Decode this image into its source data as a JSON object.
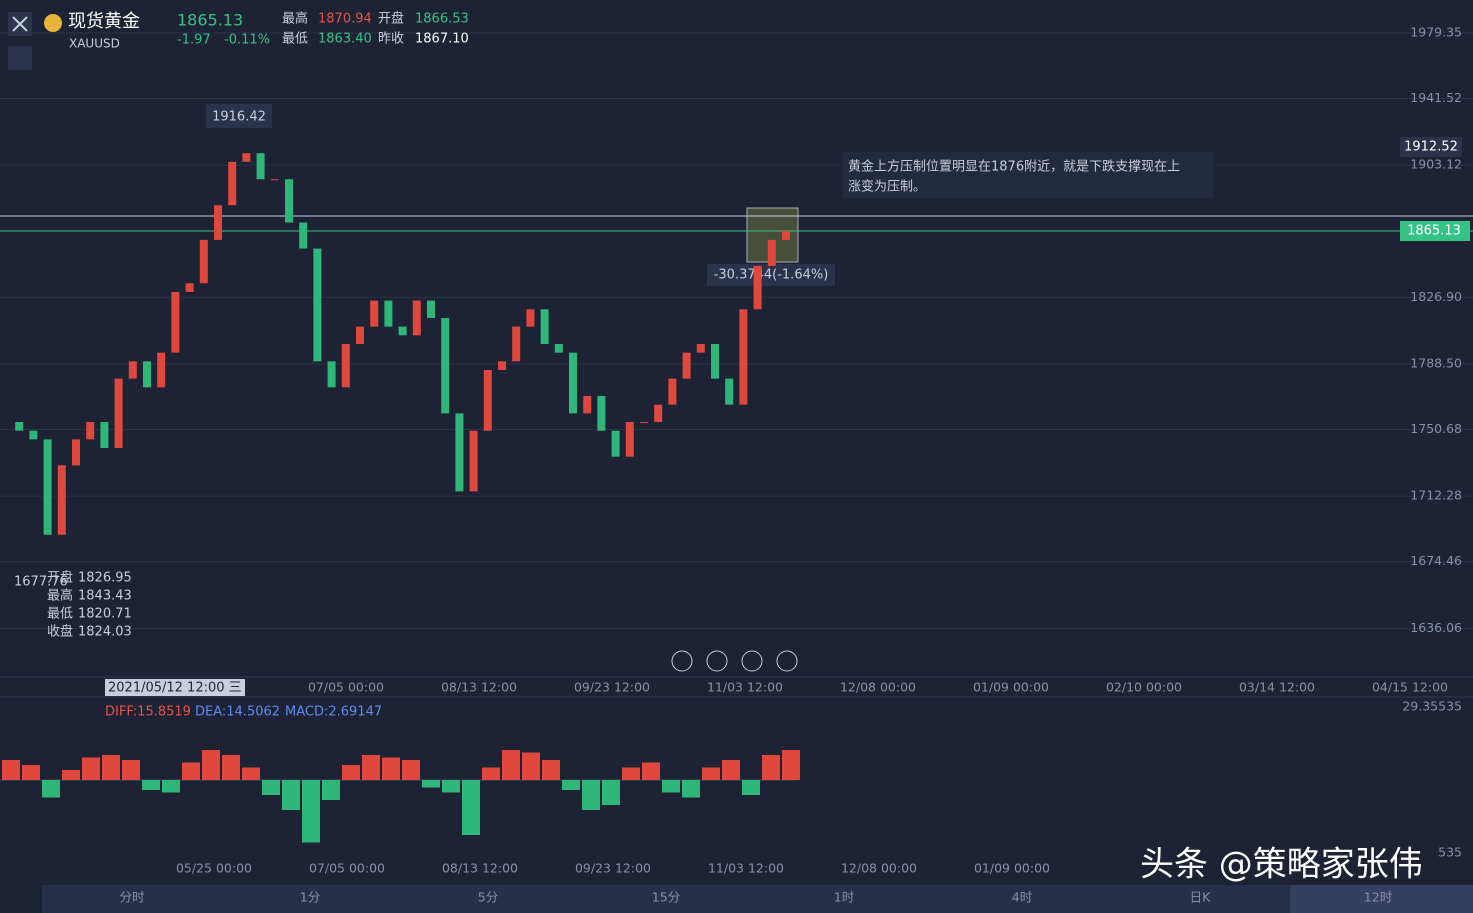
{
  "header": {
    "name": "现货黄金",
    "symbol": "XAUUSD",
    "price": "1865.13",
    "change": "-1.97",
    "change_pct": "-0.11%",
    "high_label": "最高",
    "high": "1870.94",
    "open_label": "开盘",
    "open": "1866.53",
    "low_label": "最低",
    "low": "1863.40",
    "prev_label": "昨收",
    "prev": "1867.10"
  },
  "price_axis": {
    "range": [
      1608,
      1998.3
    ],
    "ticks": [
      1979.35,
      1941.52,
      1903.12,
      {
        "value": 1826.9,
        "label": "1826.90"
      },
      {
        "value": 1788.5,
        "label": "1788.50"
      },
      1750.68,
      1712.28,
      1674.46,
      1636.06
    ]
  },
  "candles": {
    "closes": [
      1755,
      1750,
      1745,
      1690,
      1730,
      1745,
      1755,
      1740,
      1780,
      1790,
      1775,
      1795,
      1830,
      1835,
      1860,
      1880,
      1905,
      1910,
      1895,
      1895,
      1870,
      1855,
      1790,
      1775,
      1800,
      1810,
      1825,
      1810,
      1805,
      1825,
      1815,
      1760,
      1715,
      1750,
      1785,
      1790,
      1810,
      1820,
      1800,
      1795,
      1760,
      1770,
      1750,
      1735,
      1755,
      1755,
      1765,
      1780,
      1795,
      1800,
      1780,
      1765,
      1820,
      1845,
      1860,
      1865.13
    ]
  },
  "annotations": {
    "max": "1916.42",
    "min": "1677.76",
    "measure": "-30.3744(-1.64%)",
    "note": [
      "黄金上方压制位置明显在1876附近，就是下跌支撑现在上",
      "涨变为压制。"
    ],
    "alert": "1912.52",
    "current": "1865.13",
    "cursor_date": "2021/05/12 12:00 三"
  },
  "info_box": [
    [
      "开盘",
      "1826.95"
    ],
    [
      "最高",
      "1843.43"
    ],
    [
      "最低",
      "1820.71"
    ],
    [
      "收盘",
      "1824.03"
    ]
  ],
  "time_axis": [
    "07/05 00:00",
    "08/13 12:00",
    "09/23 12:00",
    "11/03 12:00",
    "12/08 00:00",
    "01/09 00:00",
    "02/10 00:00",
    "03/14 12:00",
    "04/15 12:00"
  ],
  "macd": {
    "diff": "DIFF:15.8519",
    "dea": "DEA:14.5062",
    "macd": "MACD:2.69147",
    "top": "29.35535",
    "bottom": "535",
    "hist": [
      8,
      6,
      -7,
      4,
      9,
      10,
      8,
      -4,
      -5,
      7,
      12,
      10,
      5,
      -6,
      -12,
      -25,
      -8,
      6,
      10,
      9,
      8,
      -3,
      -5,
      -22,
      5,
      12,
      11,
      8,
      -4,
      -12,
      -10,
      5,
      7,
      -5,
      -7,
      5,
      8,
      -6,
      10,
      12
    ],
    "time_axis": [
      "05/25 00:00",
      "07/05 00:00",
      "08/13 12:00",
      "09/23 12:00",
      "11/03 12:00",
      "12/08 00:00",
      "01/09 00:00"
    ]
  },
  "tabs": [
    "分时",
    "1分",
    "5分",
    "15分",
    "1时",
    "4时",
    "日K",
    "12时"
  ],
  "watermark": "头条 @策略家张伟"
}
